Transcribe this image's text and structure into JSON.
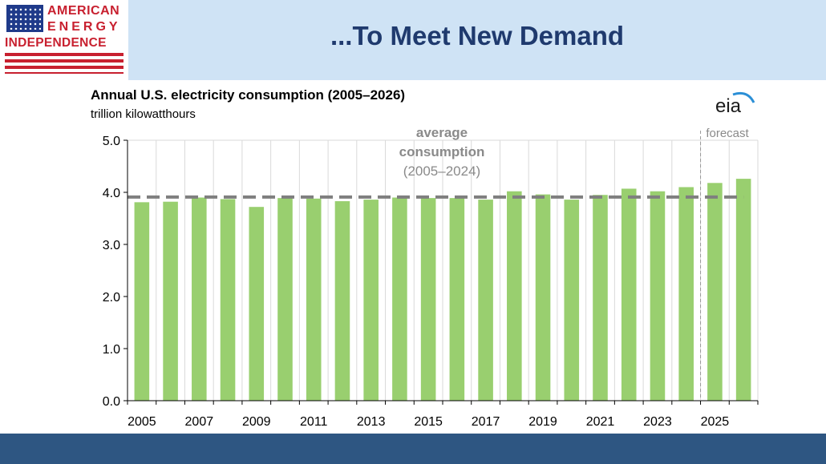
{
  "header": {
    "logo": {
      "line1": "AMERICAN",
      "line2": "ENERGY",
      "line3": "INDEPENDENCE"
    },
    "title": "...To Meet New Demand"
  },
  "colors": {
    "header_band": "#cfe3f5",
    "title": "#1f3a6e",
    "logo_red": "#c8202f",
    "footer_band": "#2e5682",
    "bar": "#99cf6f",
    "average_line": "#7f7f7f",
    "gridline": "#d9d9d9"
  },
  "chart_data": {
    "type": "bar",
    "title": "Annual U.S. electricity consumption (2005–2026)",
    "subtitle": "trillion kilowatthours",
    "categories": [
      "2005",
      "2006",
      "2007",
      "2008",
      "2009",
      "2010",
      "2011",
      "2012",
      "2013",
      "2014",
      "2015",
      "2016",
      "2017",
      "2018",
      "2019",
      "2020",
      "2021",
      "2022",
      "2023",
      "2024",
      "2025",
      "2026"
    ],
    "x_tick_labels": [
      "2005",
      "2007",
      "2009",
      "2011",
      "2013",
      "2015",
      "2017",
      "2019",
      "2021",
      "2023",
      "2025"
    ],
    "values": [
      3.81,
      3.82,
      3.9,
      3.87,
      3.72,
      3.89,
      3.88,
      3.83,
      3.86,
      3.9,
      3.89,
      3.89,
      3.86,
      4.02,
      3.96,
      3.86,
      3.95,
      4.07,
      4.02,
      4.1,
      4.18,
      4.26
    ],
    "ylim": [
      0,
      5
    ],
    "y_ticks": [
      "0.0",
      "1.0",
      "2.0",
      "3.0",
      "4.0",
      "5.0"
    ],
    "grid": "vertical",
    "average_line": {
      "value": 3.91,
      "label_line1": "average",
      "label_line2": "consumption",
      "label_line3": "(2005–2024)"
    },
    "forecast": {
      "divider_after": "2024",
      "label": "forecast"
    },
    "source_logo": "eia"
  }
}
